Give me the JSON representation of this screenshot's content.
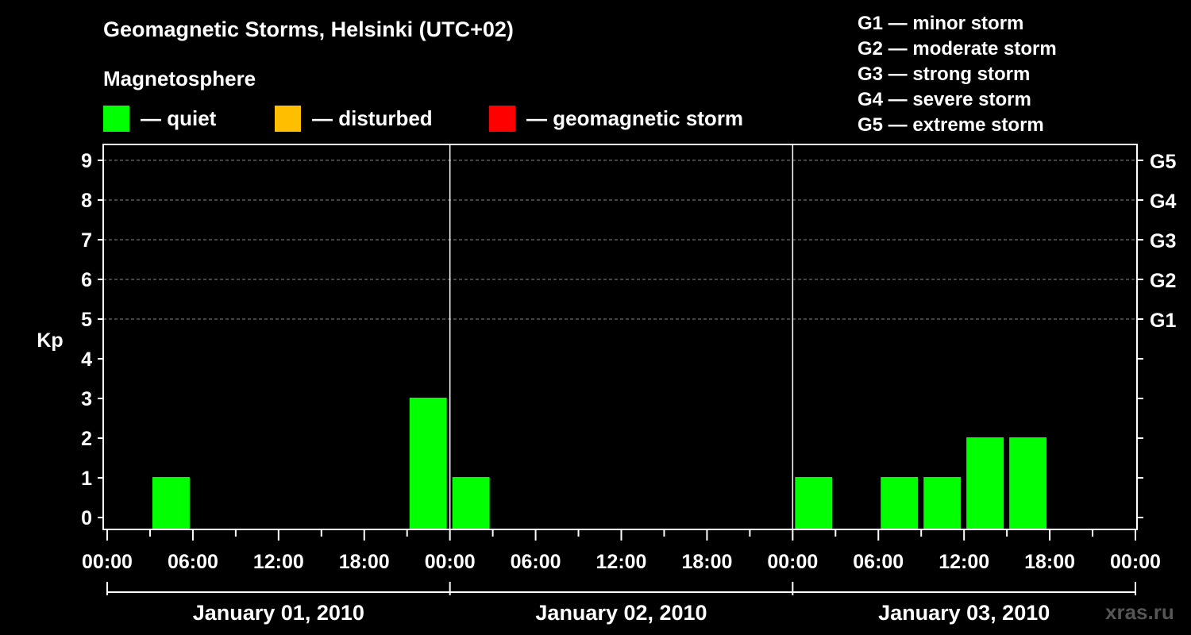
{
  "header": {
    "title": "Geomagnetic Storms, Helsinki (UTC+02)",
    "subtitle": "Magnetosphere"
  },
  "legend": [
    {
      "label": "— quiet",
      "color": "#00ff00"
    },
    {
      "label": "— disturbed",
      "color": "#ffbf00"
    },
    {
      "label": "— geomagnetic storm",
      "color": "#ff0000"
    }
  ],
  "storm_scale": [
    "G1 — minor storm",
    "G2 — moderate storm",
    "G3 — strong storm",
    "G4 — severe storm",
    "G5 — extreme storm"
  ],
  "watermark": "xras.ru",
  "chart_data": {
    "type": "bar",
    "ylabel": "Kp",
    "ylim": [
      0,
      9
    ],
    "y_ticks": [
      "0",
      "1",
      "2",
      "3",
      "4",
      "5",
      "6",
      "7",
      "8",
      "9"
    ],
    "right_ticks": [
      {
        "kp": 5,
        "label": "G1"
      },
      {
        "kp": 6,
        "label": "G2"
      },
      {
        "kp": 7,
        "label": "G3"
      },
      {
        "kp": 8,
        "label": "G4"
      },
      {
        "kp": 9,
        "label": "G5"
      }
    ],
    "x_tick_labels": [
      "00:00",
      "06:00",
      "12:00",
      "18:00",
      "00:00",
      "06:00",
      "12:00",
      "18:00",
      "00:00",
      "06:00",
      "12:00",
      "18:00",
      "00:00"
    ],
    "days": [
      "January 01, 2010",
      "January 02, 2010",
      "January 03, 2010"
    ],
    "grid": true,
    "series": [
      {
        "color": "#00ff00",
        "bars": [
          {
            "start_hour": 3,
            "kp": 1
          },
          {
            "start_hour": 21,
            "kp": 3
          },
          {
            "start_hour": 24,
            "kp": 1
          },
          {
            "start_hour": 48,
            "kp": 1
          },
          {
            "start_hour": 54,
            "kp": 1
          },
          {
            "start_hour": 57,
            "kp": 1
          },
          {
            "start_hour": 60,
            "kp": 2
          },
          {
            "start_hour": 63,
            "kp": 2
          }
        ]
      }
    ]
  }
}
